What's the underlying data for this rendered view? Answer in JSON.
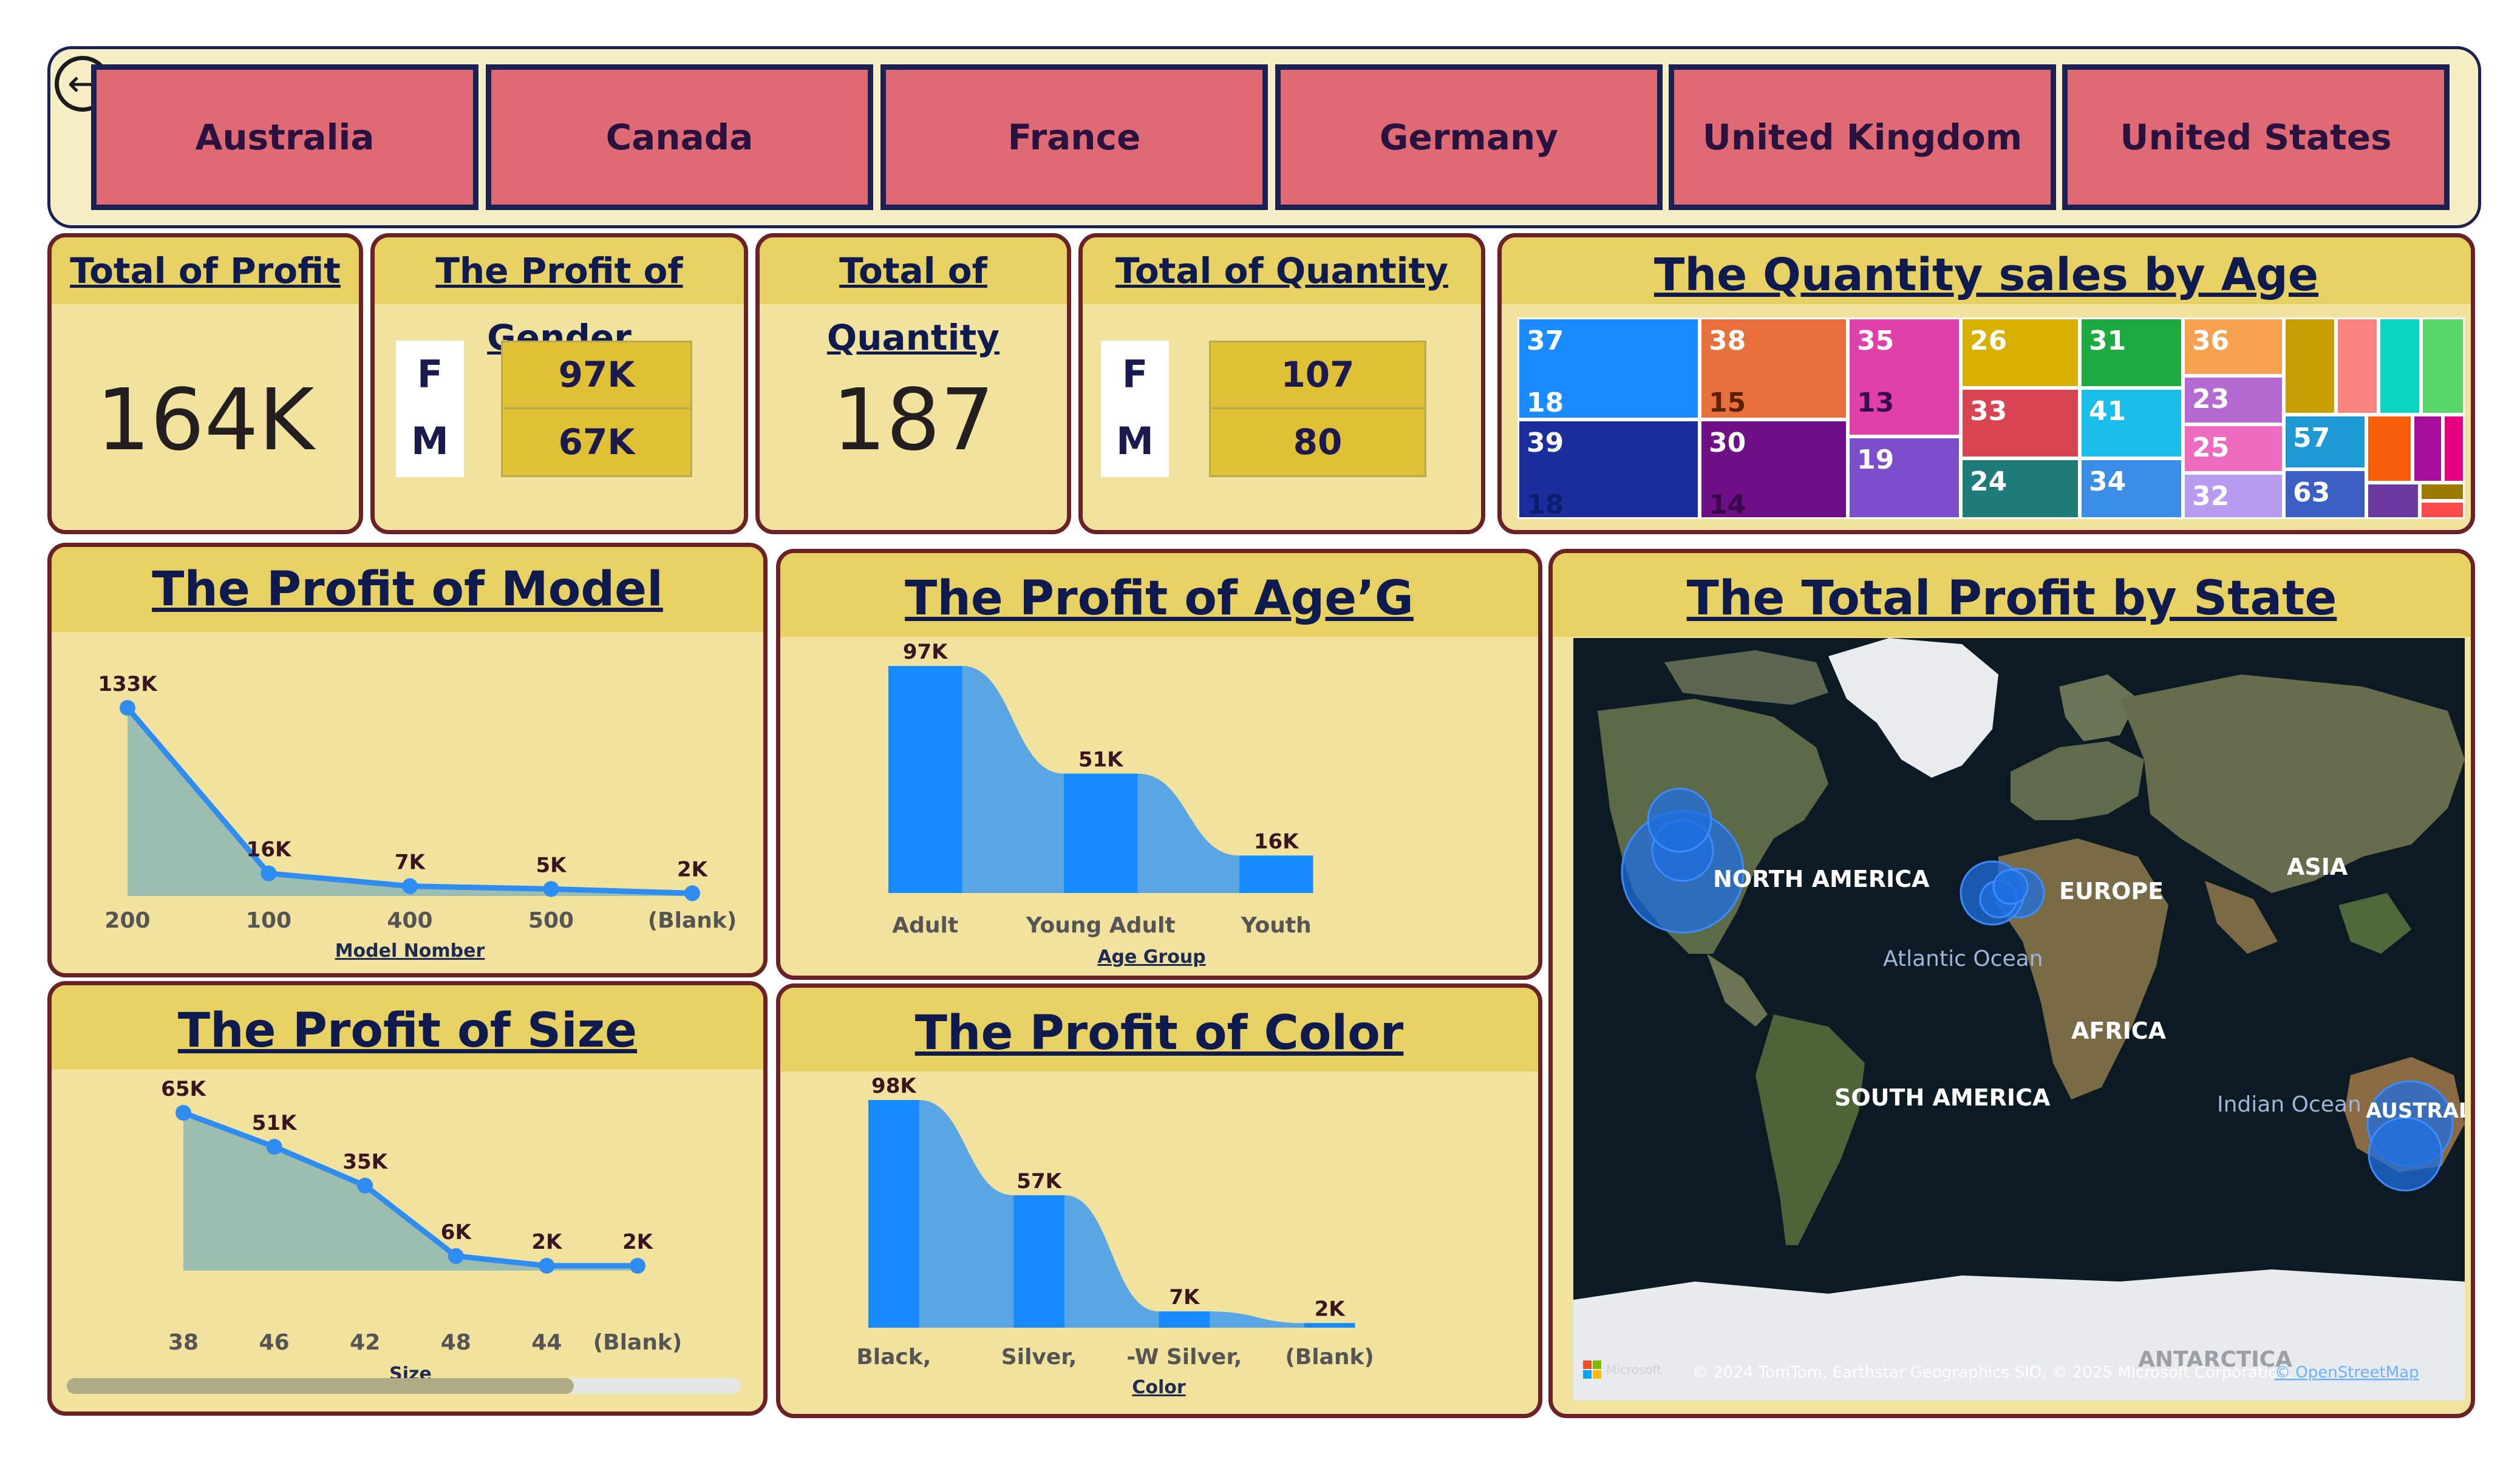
{
  "header": {
    "countries": [
      "Australia",
      "Canada",
      "France",
      "Germany",
      "United Kingdom",
      "United States"
    ]
  },
  "kpis": {
    "total_profit": {
      "title": "Total of Profit",
      "value": "164K"
    },
    "profit_gender": {
      "title": "The Profit of Gender",
      "labels": [
        "F",
        "M"
      ],
      "values": [
        "97K",
        "67K"
      ]
    },
    "total_quantity": {
      "title": "Total of Quantity",
      "value": "187"
    },
    "quantity_gender": {
      "title": "Total of Quantity",
      "labels": [
        "F",
        "M"
      ],
      "values": [
        "107",
        "80"
      ]
    }
  },
  "treemap": {
    "title": "The Quantity sales by Age",
    "tiles": [
      {
        "label": "37",
        "color": "#1a8cff"
      },
      {
        "label": "18",
        "color": "#1a8cff"
      },
      {
        "label": "39",
        "color": "#1c2e9e"
      },
      {
        "label": "18",
        "color": "#1c2e9e"
      },
      {
        "label": "38",
        "color": "#e8703d"
      },
      {
        "label": "15",
        "color": "#e8703d"
      },
      {
        "label": "30",
        "color": "#6e0f86"
      },
      {
        "label": "14",
        "color": "#6e0f86"
      },
      {
        "label": "35",
        "color": "#e040a8"
      },
      {
        "label": "13",
        "color": "#e040a8"
      },
      {
        "label": "19",
        "color": "#7d4ecb"
      },
      {
        "label": "26",
        "color": "#d8b100"
      },
      {
        "label": "33",
        "color": "#d94452"
      },
      {
        "label": "24",
        "color": "#1f7b78"
      },
      {
        "label": "31",
        "color": "#1daa40"
      },
      {
        "label": "41",
        "color": "#19bfea"
      },
      {
        "label": "34",
        "color": "#3a8ee6"
      },
      {
        "label": "36",
        "color": "#f5a150"
      },
      {
        "label": "23",
        "color": "#b46ad1"
      },
      {
        "label": "25",
        "color": "#ef6bbf"
      },
      {
        "label": "32",
        "color": "#b89af0"
      },
      {
        "label": "57",
        "color": "#1d9ad6"
      },
      {
        "label": "63",
        "color": "#3c5fc4"
      }
    ]
  },
  "profit_model": {
    "title": "The Profit of Model",
    "chart_data": {
      "type": "area",
      "categories": [
        "200",
        "100",
        "400",
        "500",
        "(Blank)"
      ],
      "values": [
        133,
        16,
        7,
        5,
        2
      ],
      "data_labels": [
        "133K",
        "16K",
        "7K",
        "5K",
        "2K"
      ],
      "xlabel": "Model Nomber",
      "unit": "K",
      "color": "#2f8cf0"
    }
  },
  "profit_age": {
    "title": "The Profit of Age’G",
    "chart_data": {
      "type": "bar",
      "categories": [
        "Adult",
        "Young Adult",
        "Youth"
      ],
      "values": [
        97,
        51,
        16
      ],
      "data_labels": [
        "97K",
        "51K",
        "16K"
      ],
      "xlabel": "Age Group",
      "unit": "K",
      "color": "#168bff"
    }
  },
  "profit_size": {
    "title": "The Profit of Size",
    "chart_data": {
      "type": "area",
      "categories": [
        "38",
        "46",
        "42",
        "48",
        "44",
        "(Blank)"
      ],
      "values": [
        65,
        51,
        35,
        6,
        2,
        2
      ],
      "data_labels": [
        "65K",
        "51K",
        "35K",
        "6K",
        "2K",
        "2K"
      ],
      "xlabel": "Size",
      "unit": "K",
      "color": "#2f8cf0"
    }
  },
  "profit_color": {
    "title": "The Profit of Color",
    "chart_data": {
      "type": "bar",
      "categories": [
        "Black,",
        "Silver,",
        "-W Silver,",
        "(Blank)"
      ],
      "values": [
        98,
        57,
        7,
        2
      ],
      "data_labels": [
        "98K",
        "57K",
        "7K",
        "2K"
      ],
      "xlabel": "Color",
      "unit": "K",
      "color": "#168bff"
    }
  },
  "map": {
    "title": "The Total Profit by State",
    "labels": {
      "north_america": "NORTH AMERICA",
      "europe": "EUROPE",
      "asia": "ASIA",
      "atlantic": "Atlantic Ocean",
      "africa": "AFRICA",
      "south_america": "SOUTH AMERICA",
      "indian": "Indian Ocean",
      "australia": "AUSTRAL",
      "antarctica": "ANTARCTICA"
    },
    "attribution": "© 2024 TomTom, Earthstar Geographics SIO, © 2025 Microsoft Corporation,",
    "attribution_link": "© OpenStreetMap",
    "brand": "Microsoft"
  }
}
